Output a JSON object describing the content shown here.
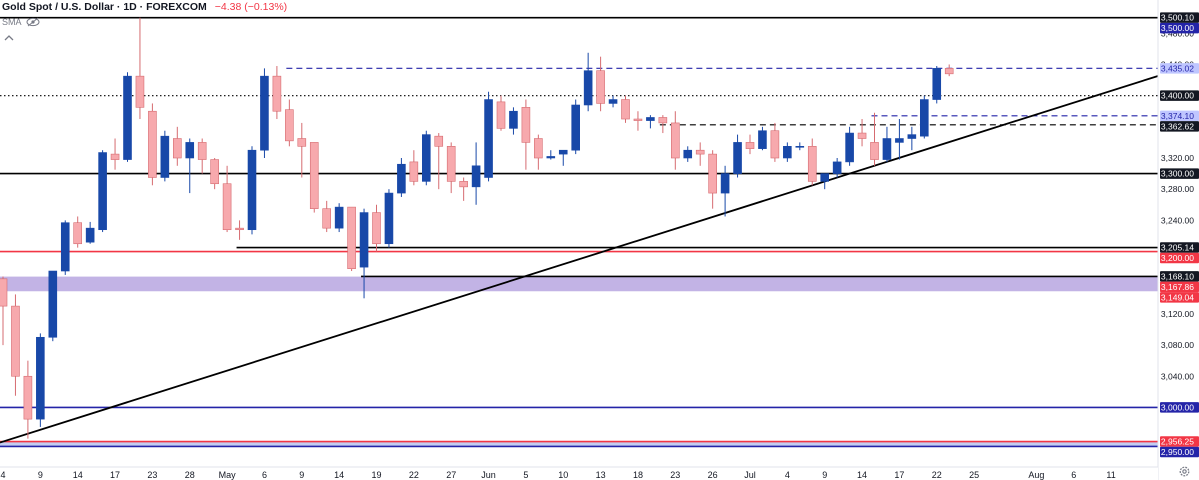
{
  "header": {
    "title": "Gold Spot / U.S. Dollar · 1D · FOREXCOM",
    "change": "−4.38 (−0.13%)"
  },
  "indicator": {
    "label": "SMA"
  },
  "icons": {
    "visibility": "eye-off-icon",
    "collapse": "chevron-up-icon",
    "settings": "gear-icon"
  },
  "colors": {
    "up": "#1848a8",
    "down": "#f7a9ad",
    "down_border": "#d66b70",
    "support_line": "#000000",
    "red_level": "#f23645",
    "blue_level": "#2424a8",
    "zone": "#b7a6e0"
  },
  "chart_data": {
    "type": "candlestick",
    "title": "Gold Spot / U.S. Dollar",
    "timeframe": "1D",
    "y_axis": {
      "range": [
        2930,
        3515
      ],
      "ticks": [
        "3,480.00",
        "3,440.00",
        "3,320.00",
        "3,280.00",
        "3,240.00",
        "3,120.00",
        "3,080.00",
        "3,040.00"
      ]
    },
    "x_axis": {
      "ticks": [
        {
          "label": "4",
          "i": 0
        },
        {
          "label": "9",
          "i": 3
        },
        {
          "label": "14",
          "i": 6
        },
        {
          "label": "17",
          "i": 9
        },
        {
          "label": "23",
          "i": 12
        },
        {
          "label": "28",
          "i": 15
        },
        {
          "label": "May",
          "i": 18
        },
        {
          "label": "6",
          "i": 21
        },
        {
          "label": "9",
          "i": 24
        },
        {
          "label": "14",
          "i": 27
        },
        {
          "label": "19",
          "i": 30
        },
        {
          "label": "22",
          "i": 33
        },
        {
          "label": "27",
          "i": 36
        },
        {
          "label": "Jun",
          "i": 39
        },
        {
          "label": "5",
          "i": 42
        },
        {
          "label": "10",
          "i": 45
        },
        {
          "label": "13",
          "i": 48
        },
        {
          "label": "18",
          "i": 51
        },
        {
          "label": "23",
          "i": 54
        },
        {
          "label": "26",
          "i": 57
        },
        {
          "label": "Jul",
          "i": 60
        },
        {
          "label": "4",
          "i": 63
        },
        {
          "label": "9",
          "i": 66
        },
        {
          "label": "14",
          "i": 69
        },
        {
          "label": "17",
          "i": 72
        },
        {
          "label": "22",
          "i": 75
        },
        {
          "label": "25",
          "i": 78
        },
        {
          "label": "Aug",
          "i": 83
        },
        {
          "label": "6",
          "i": 86
        },
        {
          "label": "11",
          "i": 89
        }
      ]
    },
    "price_labels": [
      {
        "text": "3,500.10",
        "value": 3500.1,
        "color": "#131722"
      },
      {
        "text": "3,500.00",
        "value": 3500.0,
        "color": "#2424a8"
      },
      {
        "text": "3,435.02",
        "value": 3435.02,
        "color": "#bfc6ff",
        "text_color": "#2424a8"
      },
      {
        "text": "3,400.00",
        "value": 3400.0,
        "color": "#131722"
      },
      {
        "text": "3,374.10",
        "value": 3374.1,
        "color": "#bfc6ff",
        "text_color": "#2424a8"
      },
      {
        "text": "3,362.62",
        "value": 3362.62,
        "color": "#131722"
      },
      {
        "text": "3,300.00",
        "value": 3300.0,
        "color": "#131722"
      },
      {
        "text": "3,205.14",
        "value": 3205.14,
        "color": "#131722"
      },
      {
        "text": "3,200.00",
        "value": 3200.0,
        "color": "#f23645"
      },
      {
        "text": "3,168.10",
        "value": 3168.1,
        "color": "#131722"
      },
      {
        "text": "3,167.86",
        "value": 3167.86,
        "color": "#f23645"
      },
      {
        "text": "3,149.04",
        "value": 3149.04,
        "color": "#f23645"
      },
      {
        "text": "3,000.00",
        "value": 3000.0,
        "color": "#2424a8"
      },
      {
        "text": "2,956.25",
        "value": 2956.25,
        "color": "#f23645"
      },
      {
        "text": "2,950.00",
        "value": 2950.0,
        "color": "#2424a8"
      }
    ],
    "levels": [
      {
        "value": 3500,
        "style": "solid",
        "color": "#000000"
      },
      {
        "value": 3435.02,
        "style": "dashed",
        "color": "#2424a8",
        "from_i": 23
      },
      {
        "value": 3400,
        "style": "dotted",
        "color": "#000000"
      },
      {
        "value": 3374.1,
        "style": "dashed",
        "color": "#2424a8",
        "from_i": 70
      },
      {
        "value": 3362.62,
        "style": "dashed",
        "color": "#000000",
        "from_i": 53
      },
      {
        "value": 3300,
        "style": "solid",
        "color": "#000000"
      },
      {
        "value": 3205.14,
        "style": "solid",
        "color": "#000000",
        "from_i": 19
      },
      {
        "value": 3200,
        "style": "solid",
        "color": "#f23645"
      },
      {
        "value": 3168.1,
        "style": "solid",
        "color": "#000000",
        "from_i": 29
      },
      {
        "value": 3000,
        "style": "solid",
        "color": "#2424a8"
      },
      {
        "value": 2956.25,
        "style": "solid",
        "color": "#f23645"
      },
      {
        "value": 2950,
        "style": "solid",
        "color": "#2424a8"
      }
    ],
    "zones": [
      {
        "from": 3149.04,
        "to": 3167.86,
        "color": "#b7a6e0"
      },
      {
        "from": 2950,
        "to": 2956.25,
        "color": "#b8c4ee"
      }
    ],
    "trendline": {
      "from": {
        "i": 0,
        "price": 2955
      },
      "to": {
        "i": 90,
        "price": 3410
      }
    },
    "candles": [
      {
        "i": 0,
        "o": 3165,
        "h": 3168,
        "c": 3130,
        "l": 3080
      },
      {
        "i": 1,
        "o": 3130,
        "h": 3145,
        "c": 3040,
        "l": 3015
      },
      {
        "i": 2,
        "o": 3040,
        "h": 3060,
        "c": 2985,
        "l": 2960
      },
      {
        "i": 3,
        "o": 2985,
        "h": 3095,
        "c": 3090,
        "l": 2975
      },
      {
        "i": 4,
        "o": 3090,
        "h": 3175,
        "c": 3175,
        "l": 3085
      },
      {
        "i": 5,
        "o": 3175,
        "h": 3240,
        "c": 3237,
        "l": 3170
      },
      {
        "i": 6,
        "o": 3237,
        "h": 3245,
        "c": 3210,
        "l": 3205
      },
      {
        "i": 7,
        "o": 3212,
        "h": 3238,
        "c": 3230,
        "l": 3210
      },
      {
        "i": 8,
        "o": 3228,
        "h": 3330,
        "c": 3327,
        "l": 3225
      },
      {
        "i": 9,
        "o": 3325,
        "h": 3345,
        "c": 3318,
        "l": 3305
      },
      {
        "i": 10,
        "o": 3318,
        "h": 3430,
        "c": 3425,
        "l": 3315
      },
      {
        "i": 11,
        "o": 3425,
        "h": 3500,
        "c": 3385,
        "l": 3370
      },
      {
        "i": 12,
        "o": 3380,
        "h": 3390,
        "c": 3295,
        "l": 3285
      },
      {
        "i": 13,
        "o": 3295,
        "h": 3355,
        "c": 3348,
        "l": 3290
      },
      {
        "i": 14,
        "o": 3345,
        "h": 3360,
        "c": 3320,
        "l": 3310
      },
      {
        "i": 15,
        "o": 3320,
        "h": 3345,
        "c": 3340,
        "l": 3275
      },
      {
        "i": 16,
        "o": 3340,
        "h": 3345,
        "c": 3318,
        "l": 3300
      },
      {
        "i": 17,
        "o": 3318,
        "h": 3320,
        "c": 3287,
        "l": 3280
      },
      {
        "i": 18,
        "o": 3287,
        "h": 3310,
        "c": 3228,
        "l": 3225
      },
      {
        "i": 19,
        "o": 3230,
        "h": 3240,
        "c": 3228,
        "l": 3215
      },
      {
        "i": 20,
        "o": 3228,
        "h": 3335,
        "c": 3330,
        "l": 3222
      },
      {
        "i": 21,
        "o": 3330,
        "h": 3435,
        "c": 3425,
        "l": 3320
      },
      {
        "i": 22,
        "o": 3425,
        "h": 3438,
        "c": 3380,
        "l": 3370
      },
      {
        "i": 23,
        "o": 3382,
        "h": 3395,
        "c": 3342,
        "l": 3335
      },
      {
        "i": 24,
        "o": 3345,
        "h": 3365,
        "c": 3335,
        "l": 3295
      },
      {
        "i": 25,
        "o": 3340,
        "h": 3340,
        "c": 3255,
        "l": 3250
      },
      {
        "i": 26,
        "o": 3255,
        "h": 3265,
        "c": 3230,
        "l": 3225
      },
      {
        "i": 27,
        "o": 3230,
        "h": 3262,
        "c": 3257,
        "l": 3225
      },
      {
        "i": 28,
        "o": 3257,
        "h": 3255,
        "c": 3178,
        "l": 3175
      },
      {
        "i": 29,
        "o": 3180,
        "h": 3255,
        "c": 3250,
        "l": 3140
      },
      {
        "i": 30,
        "o": 3250,
        "h": 3260,
        "c": 3210,
        "l": 3200
      },
      {
        "i": 31,
        "o": 3210,
        "h": 3280,
        "c": 3275,
        "l": 3205
      },
      {
        "i": 32,
        "o": 3275,
        "h": 3320,
        "c": 3312,
        "l": 3270
      },
      {
        "i": 33,
        "o": 3315,
        "h": 3330,
        "c": 3290,
        "l": 3285
      },
      {
        "i": 34,
        "o": 3290,
        "h": 3355,
        "c": 3350,
        "l": 3285
      },
      {
        "i": 35,
        "o": 3348,
        "h": 3352,
        "c": 3335,
        "l": 3280
      },
      {
        "i": 36,
        "o": 3335,
        "h": 3340,
        "c": 3290,
        "l": 3275
      },
      {
        "i": 37,
        "o": 3290,
        "h": 3295,
        "c": 3283,
        "l": 3265
      },
      {
        "i": 38,
        "o": 3283,
        "h": 3340,
        "c": 3310,
        "l": 3260
      },
      {
        "i": 39,
        "o": 3295,
        "h": 3405,
        "c": 3395,
        "l": 3290
      },
      {
        "i": 40,
        "o": 3392,
        "h": 3400,
        "c": 3358,
        "l": 3355
      },
      {
        "i": 41,
        "o": 3358,
        "h": 3385,
        "c": 3380,
        "l": 3350
      },
      {
        "i": 42,
        "o": 3385,
        "h": 3395,
        "c": 3340,
        "l": 3305
      },
      {
        "i": 43,
        "o": 3345,
        "h": 3350,
        "c": 3320,
        "l": 3305
      },
      {
        "i": 44,
        "o": 3320,
        "h": 3330,
        "c": 3322,
        "l": 3318
      },
      {
        "i": 45,
        "o": 3325,
        "h": 3330,
        "c": 3330,
        "l": 3310
      },
      {
        "i": 46,
        "o": 3330,
        "h": 3395,
        "c": 3388,
        "l": 3325
      },
      {
        "i": 47,
        "o": 3388,
        "h": 3455,
        "c": 3432,
        "l": 3380
      },
      {
        "i": 48,
        "o": 3432,
        "h": 3450,
        "c": 3390,
        "l": 3380
      },
      {
        "i": 49,
        "o": 3390,
        "h": 3400,
        "c": 3395,
        "l": 3385
      },
      {
        "i": 50,
        "o": 3395,
        "h": 3400,
        "c": 3370,
        "l": 3365
      },
      {
        "i": 51,
        "o": 3370,
        "h": 3380,
        "c": 3368,
        "l": 3355
      },
      {
        "i": 52,
        "o": 3368,
        "h": 3375,
        "c": 3372,
        "l": 3358
      },
      {
        "i": 53,
        "o": 3372,
        "h": 3375,
        "c": 3365,
        "l": 3352
      },
      {
        "i": 54,
        "o": 3365,
        "h": 3380,
        "c": 3320,
        "l": 3305
      },
      {
        "i": 55,
        "o": 3320,
        "h": 3335,
        "c": 3330,
        "l": 3315
      },
      {
        "i": 56,
        "o": 3330,
        "h": 3340,
        "c": 3325,
        "l": 3310
      },
      {
        "i": 57,
        "o": 3325,
        "h": 3330,
        "c": 3275,
        "l": 3255
      },
      {
        "i": 58,
        "o": 3275,
        "h": 3310,
        "c": 3300,
        "l": 3245
      },
      {
        "i": 59,
        "o": 3300,
        "h": 3350,
        "c": 3340,
        "l": 3295
      },
      {
        "i": 60,
        "o": 3340,
        "h": 3350,
        "c": 3332,
        "l": 3325
      },
      {
        "i": 61,
        "o": 3332,
        "h": 3360,
        "c": 3355,
        "l": 3330
      },
      {
        "i": 62,
        "o": 3355,
        "h": 3365,
        "c": 3320,
        "l": 3315
      },
      {
        "i": 63,
        "o": 3320,
        "h": 3340,
        "c": 3335,
        "l": 3315
      },
      {
        "i": 64,
        "o": 3335,
        "h": 3340,
        "c": 3335,
        "l": 3330
      },
      {
        "i": 65,
        "o": 3335,
        "h": 3345,
        "c": 3290,
        "l": 3285
      },
      {
        "i": 66,
        "o": 3290,
        "h": 3300,
        "c": 3300,
        "l": 3280
      },
      {
        "i": 67,
        "o": 3300,
        "h": 3320,
        "c": 3315,
        "l": 3295
      },
      {
        "i": 68,
        "o": 3315,
        "h": 3360,
        "c": 3352,
        "l": 3310
      },
      {
        "i": 69,
        "o": 3352,
        "h": 3370,
        "c": 3345,
        "l": 3335
      },
      {
        "i": 70,
        "o": 3340,
        "h": 3378,
        "c": 3318,
        "l": 3310
      },
      {
        "i": 71,
        "o": 3318,
        "h": 3360,
        "c": 3345,
        "l": 3315
      },
      {
        "i": 72,
        "o": 3340,
        "h": 3370,
        "c": 3345,
        "l": 3318
      },
      {
        "i": 73,
        "o": 3345,
        "h": 3360,
        "c": 3350,
        "l": 3330
      },
      {
        "i": 74,
        "o": 3348,
        "h": 3400,
        "c": 3395,
        "l": 3345
      },
      {
        "i": 75,
        "o": 3395,
        "h": 3438,
        "c": 3435,
        "l": 3390
      },
      {
        "i": 76,
        "o": 3435,
        "h": 3440,
        "c": 3428,
        "l": 3425
      }
    ]
  }
}
